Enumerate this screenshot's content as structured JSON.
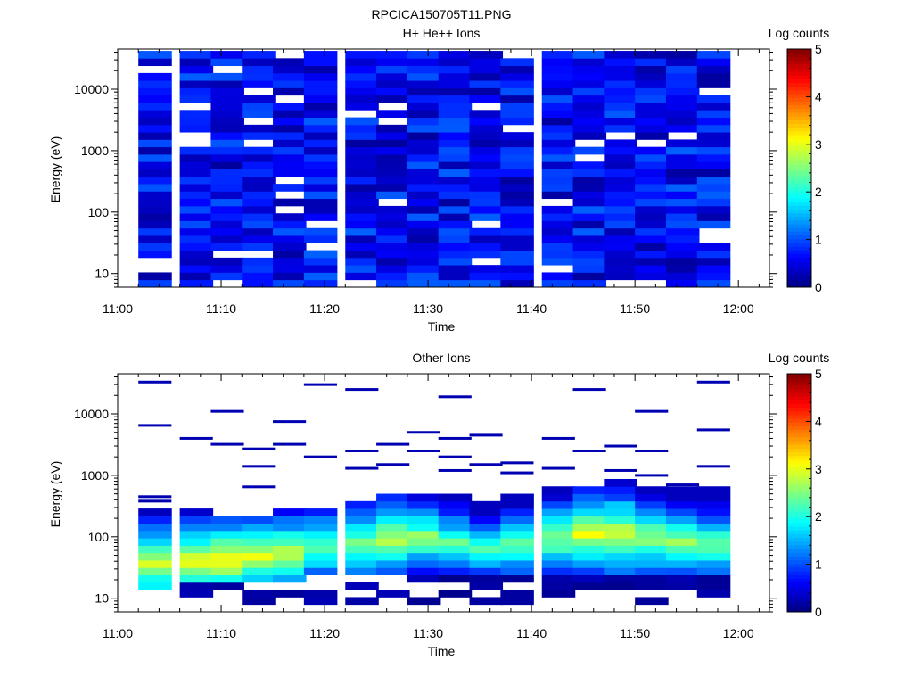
{
  "figure_title": "RPCICA150705T11.PNG",
  "chart_data": [
    {
      "type": "heatmap",
      "title": "H+ He++ Ions",
      "xlabel": "Time",
      "ylabel": "Energy (eV)",
      "xlim": [
        "11:00",
        "12:03"
      ],
      "x_ticks": [
        "11:00",
        "11:10",
        "11:20",
        "11:30",
        "11:40",
        "11:50",
        "12:00"
      ],
      "y_scale": "log",
      "ylim": [
        6,
        45000
      ],
      "y_ticks": [
        "10",
        "100",
        "1000",
        "10000"
      ],
      "colorbar": {
        "label": "Log counts",
        "range": [
          0,
          5
        ],
        "ticks": [
          "0",
          "1",
          "2",
          "3",
          "4",
          "5"
        ],
        "colormap": "jet"
      },
      "time_bins_start": [
        "11:02",
        "11:06",
        "11:09",
        "11:12",
        "11:15",
        "11:18",
        "11:22",
        "11:25",
        "11:28",
        "11:31",
        "11:34",
        "11:37",
        "11:41",
        "11:44",
        "11:47",
        "11:50",
        "11:53",
        "11:56"
      ],
      "time_bin_width_min": 3.2,
      "energy_range_eV": [
        6,
        42000
      ],
      "energy_bins": 32,
      "distribution": "noisy background across all energies, log counts about 0.2 to 1.1, with scattered empty bins",
      "grid": false
    },
    {
      "type": "heatmap",
      "title": "Other Ions",
      "xlabel": "Time",
      "ylabel": "Energy (eV)",
      "xlim": [
        "11:00",
        "12:03"
      ],
      "x_ticks": [
        "11:00",
        "11:10",
        "11:20",
        "11:30",
        "11:40",
        "11:50",
        "12:00"
      ],
      "y_scale": "log",
      "ylim": [
        6,
        45000
      ],
      "y_ticks": [
        "10",
        "100",
        "1000",
        "10000"
      ],
      "colorbar": {
        "label": "Log counts",
        "range": [
          0,
          5
        ],
        "ticks": [
          "0",
          "1",
          "2",
          "3",
          "4",
          "5"
        ],
        "colormap": "jet"
      },
      "time_bins_start": [
        "11:02",
        "11:06",
        "11:09",
        "11:12",
        "11:15",
        "11:18",
        "11:22",
        "11:25",
        "11:28",
        "11:31",
        "11:34",
        "11:37",
        "11:41",
        "11:44",
        "11:47",
        "11:50",
        "11:53",
        "11:56"
      ],
      "time_bin_width_min": 3.2,
      "peak_energy_eV": [
        38,
        40,
        42,
        48,
        55,
        70,
        80,
        95,
        100,
        80,
        65,
        75,
        95,
        110,
        110,
        95,
        85,
        75
      ],
      "peak_log_counts": [
        2.9,
        3.0,
        3.1,
        2.9,
        2.8,
        2.5,
        2.6,
        2.8,
        2.6,
        2.4,
        2.2,
        2.4,
        2.6,
        3.0,
        3.0,
        2.7,
        2.6,
        2.5
      ],
      "band_upper_eV": [
        300,
        260,
        230,
        250,
        300,
        320,
        420,
        520,
        500,
        480,
        380,
        550,
        650,
        700,
        800,
        700,
        600,
        700
      ],
      "band_lower_eV": [
        15,
        16,
        16,
        18,
        20,
        22,
        24,
        24,
        24,
        25,
        26,
        26,
        24,
        24,
        24,
        24,
        24,
        22
      ],
      "high_energy_traces_eV": [
        [
          33000,
          6500,
          450,
          380
        ],
        [
          4000
        ],
        [
          11000,
          3200
        ],
        [
          2700,
          1400,
          650
        ],
        [
          7500,
          3200
        ],
        [
          30000,
          2000
        ],
        [
          25000,
          2500,
          1300
        ],
        [
          3200,
          1500
        ],
        [
          5000,
          2500
        ],
        [
          19000,
          4000,
          2000,
          1200
        ],
        [
          4500,
          1500
        ],
        [
          1600,
          1100
        ],
        [
          4000,
          1300
        ],
        [
          25000,
          2500
        ],
        [
          3000,
          1200
        ],
        [
          11000,
          2500,
          1000
        ],
        [
          700
        ],
        [
          33000,
          5500,
          1400
        ]
      ],
      "grid": false
    }
  ]
}
